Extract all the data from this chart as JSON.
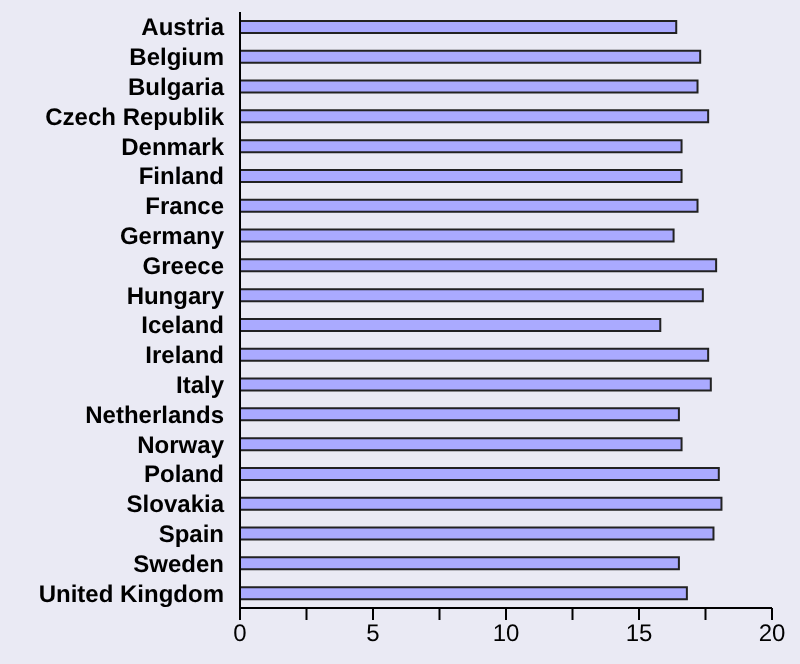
{
  "chart_data": {
    "type": "bar",
    "orientation": "horizontal",
    "categories": [
      "Austria",
      "Belgium",
      "Bulgaria",
      "Czech Republik",
      "Denmark",
      "Finland",
      "France",
      "Germany",
      "Greece",
      "Hungary",
      "Iceland",
      "Ireland",
      "Italy",
      "Netherlands",
      "Norway",
      "Poland",
      "Slovakia",
      "Spain",
      "Sweden",
      "United Kingdom"
    ],
    "values": [
      16.4,
      17.3,
      17.2,
      17.6,
      16.6,
      16.6,
      17.2,
      16.3,
      17.9,
      17.4,
      15.8,
      17.6,
      17.7,
      16.5,
      16.6,
      18.0,
      18.1,
      17.8,
      16.5,
      16.8
    ],
    "color": "#aaaaff",
    "xlim": [
      0,
      20
    ],
    "xticks": [
      0,
      {
        "value": 2.5,
        "label": null
      },
      5,
      {
        "value": 7.5,
        "label": null
      },
      10,
      {
        "value": 12.5,
        "label": null
      },
      15,
      {
        "value": 17.5,
        "label": null
      },
      20
    ],
    "grid": false,
    "legend": false
  }
}
